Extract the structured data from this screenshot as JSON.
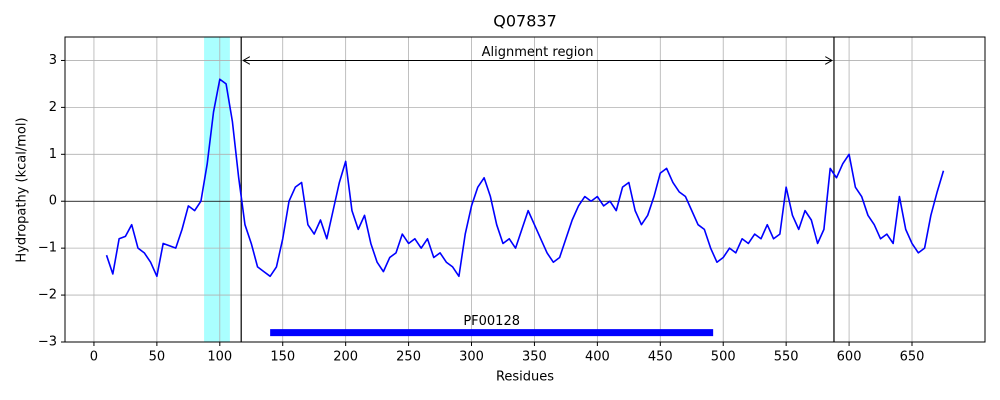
{
  "chart_data": {
    "type": "line",
    "title": "Q07837",
    "xlabel": "Residues",
    "ylabel": "Hydropathy (kcal/mol)",
    "x": [
      10,
      15,
      20,
      25,
      30,
      35,
      40,
      45,
      50,
      55,
      60,
      65,
      70,
      75,
      80,
      85,
      90,
      95,
      100,
      105,
      110,
      115,
      120,
      125,
      130,
      135,
      140,
      145,
      150,
      155,
      160,
      165,
      170,
      175,
      180,
      185,
      190,
      195,
      200,
      205,
      210,
      215,
      220,
      225,
      230,
      235,
      240,
      245,
      250,
      255,
      260,
      265,
      270,
      275,
      280,
      285,
      290,
      295,
      300,
      305,
      310,
      315,
      320,
      325,
      330,
      335,
      340,
      345,
      350,
      355,
      360,
      365,
      370,
      375,
      380,
      385,
      390,
      395,
      400,
      405,
      410,
      415,
      420,
      425,
      430,
      435,
      440,
      445,
      450,
      455,
      460,
      465,
      470,
      475,
      480,
      485,
      490,
      495,
      500,
      505,
      510,
      515,
      520,
      525,
      530,
      535,
      540,
      545,
      550,
      555,
      560,
      565,
      570,
      575,
      580,
      585,
      590,
      595,
      600,
      605,
      610,
      615,
      620,
      625,
      630,
      635,
      640,
      645,
      650,
      655,
      660,
      665,
      670,
      675
    ],
    "series": [
      {
        "color": "#0000ff",
        "values": [
          -1.15,
          -1.55,
          -0.8,
          -0.75,
          -0.5,
          -1.0,
          -1.1,
          -1.3,
          -1.6,
          -0.9,
          -0.95,
          -1.0,
          -0.6,
          -0.1,
          -0.2,
          0.0,
          0.8,
          1.9,
          2.6,
          2.5,
          1.7,
          0.5,
          -0.5,
          -0.9,
          -1.4,
          -1.5,
          -1.6,
          -1.4,
          -0.8,
          0.0,
          0.3,
          0.4,
          -0.5,
          -0.7,
          -0.4,
          -0.8,
          -0.2,
          0.4,
          0.85,
          -0.2,
          -0.6,
          -0.3,
          -0.9,
          -1.3,
          -1.5,
          -1.2,
          -1.1,
          -0.7,
          -0.9,
          -0.8,
          -1.0,
          -0.8,
          -1.2,
          -1.1,
          -1.3,
          -1.4,
          -1.6,
          -0.7,
          -0.1,
          0.3,
          0.5,
          0.1,
          -0.5,
          -0.9,
          -0.8,
          -1.0,
          -0.6,
          -0.2,
          -0.5,
          -0.8,
          -1.1,
          -1.3,
          -1.2,
          -0.8,
          -0.4,
          -0.1,
          0.1,
          0.0,
          0.1,
          -0.1,
          0.0,
          -0.2,
          0.3,
          0.4,
          -0.2,
          -0.5,
          -0.3,
          0.1,
          0.6,
          0.7,
          0.4,
          0.2,
          0.1,
          -0.2,
          -0.5,
          -0.6,
          -1.0,
          -1.3,
          -1.2,
          -1.0,
          -1.1,
          -0.8,
          -0.9,
          -0.7,
          -0.8,
          -0.5,
          -0.8,
          -0.7,
          0.3,
          -0.3,
          -0.6,
          -0.2,
          -0.4,
          -0.9,
          -0.6,
          0.7,
          0.5,
          0.8,
          1.0,
          0.3,
          0.1,
          -0.3,
          -0.5,
          -0.8,
          -0.7,
          -0.9,
          0.1,
          -0.6,
          -0.9,
          -1.1,
          -1.0,
          -0.3,
          0.2,
          0.65
        ]
      }
    ],
    "xlim": [
      -23,
      708
    ],
    "ylim": [
      -3,
      3.5
    ],
    "xticks": [
      0,
      50,
      100,
      150,
      200,
      250,
      300,
      350,
      400,
      450,
      500,
      550,
      600,
      650
    ],
    "yticks": [
      {
        "value": -3,
        "label": "−3"
      },
      {
        "value": -2,
        "label": "−2"
      },
      {
        "value": -1,
        "label": "−1"
      },
      0,
      1,
      2,
      3
    ],
    "grid": true,
    "zero_line": 0,
    "highlight_span": {
      "start": 87.5,
      "end": 108,
      "color": "#aaffff"
    },
    "vlines": [
      117,
      588
    ],
    "region_annotation": {
      "text": "Alignment region",
      "start": 117,
      "end": 588,
      "y": 3
    },
    "domain": {
      "name": "PF00128",
      "start": 140,
      "end": 492,
      "y": -2.8,
      "color": "#0000ff"
    }
  }
}
